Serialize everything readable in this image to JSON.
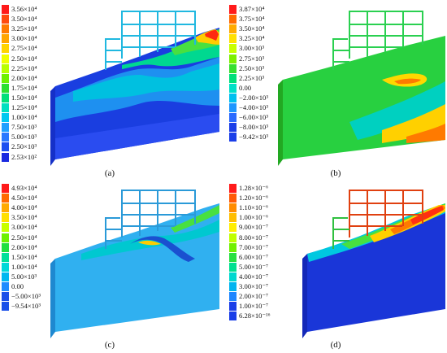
{
  "panels": [
    {
      "caption": "(a)",
      "legend": {
        "labels": [
          "3.56×10⁴",
          "3.50×10⁴",
          "3.25×10⁴",
          "3.00×10⁴",
          "2.75×10⁴",
          "2.50×10⁴",
          "2.25×10⁴",
          "2.00×10⁴",
          "1.75×10⁴",
          "1.50×10⁴",
          "1.25×10⁴",
          "1.00×10⁴",
          "7.50×10³",
          "5.00×10³",
          "2.50×10³",
          "2.53×10²"
        ],
        "colors": [
          "#ff1a1a",
          "#ff4a0e",
          "#ff7a00",
          "#ffa500",
          "#ffd400",
          "#f0ff00",
          "#b8ff00",
          "#6ef000",
          "#2de030",
          "#00e07a",
          "#00e0c0",
          "#00c8f0",
          "#1ea0ff",
          "#2a78ff",
          "#1e50f0",
          "#1a2ae0"
        ]
      }
    },
    {
      "caption": "(b)",
      "legend": {
        "labels": [
          "3.87×10⁴",
          "3.75×10⁴",
          "3.50×10⁴",
          "3.25×10⁴",
          "3.00×10³",
          "2.75×10³",
          "2.50×10³",
          "2.25×10³",
          "0.00",
          "−2.00×10³",
          "−4.00×10³",
          "−6.00×10³",
          "−8.00×10³",
          "−9.42×10³"
        ],
        "colors": [
          "#ff1a1a",
          "#ff6a00",
          "#ffaa00",
          "#ffe000",
          "#c8ff00",
          "#7cf000",
          "#36e030",
          "#00e07a",
          "#00e0c8",
          "#00c0f0",
          "#1e96ff",
          "#2a6aff",
          "#1a3ee8"
        ]
      }
    },
    {
      "caption": "(c)",
      "legend": {
        "labels": [
          "4.93×10⁴",
          "4.50×10⁴",
          "4.00×10⁴",
          "3.50×10⁴",
          "3.00×10⁴",
          "2.50×10⁴",
          "2.00×10⁴",
          "1.50×10⁴",
          "1.00×10⁴",
          "5.00×10³",
          "0.00",
          "−5.00×10³",
          "−9.54×10³"
        ],
        "colors": [
          "#ff1a1a",
          "#ff6a00",
          "#ffaa00",
          "#ffe000",
          "#c8ff00",
          "#6ef000",
          "#20e040",
          "#00e09a",
          "#00d8d8",
          "#00b8f0",
          "#1e8cff",
          "#1a50e8"
        ]
      }
    },
    {
      "caption": "(d)",
      "legend": {
        "labels": [
          "1.28×10⁻⁶",
          "1.20×10⁻⁶",
          "1.10×10⁻⁶",
          "1.00×10⁻⁶",
          "9.00×10⁻⁷",
          "8.00×10⁻⁷",
          "7.00×10⁻⁷",
          "6.00×10⁻⁷",
          "5.00×10⁻⁷",
          "4.00×10⁻⁷",
          "3.00×10⁻⁷",
          "2.00×10⁻⁷",
          "1.00×10⁻⁷",
          "6.28×10⁻¹⁶"
        ],
        "colors": [
          "#ff1a1a",
          "#ff5a06",
          "#ff8c00",
          "#ffbe00",
          "#ffee00",
          "#c0ff00",
          "#70f000",
          "#28e040",
          "#00e090",
          "#00d8d0",
          "#00b4f0",
          "#1e86ff",
          "#1a3ee8"
        ]
      }
    }
  ]
}
